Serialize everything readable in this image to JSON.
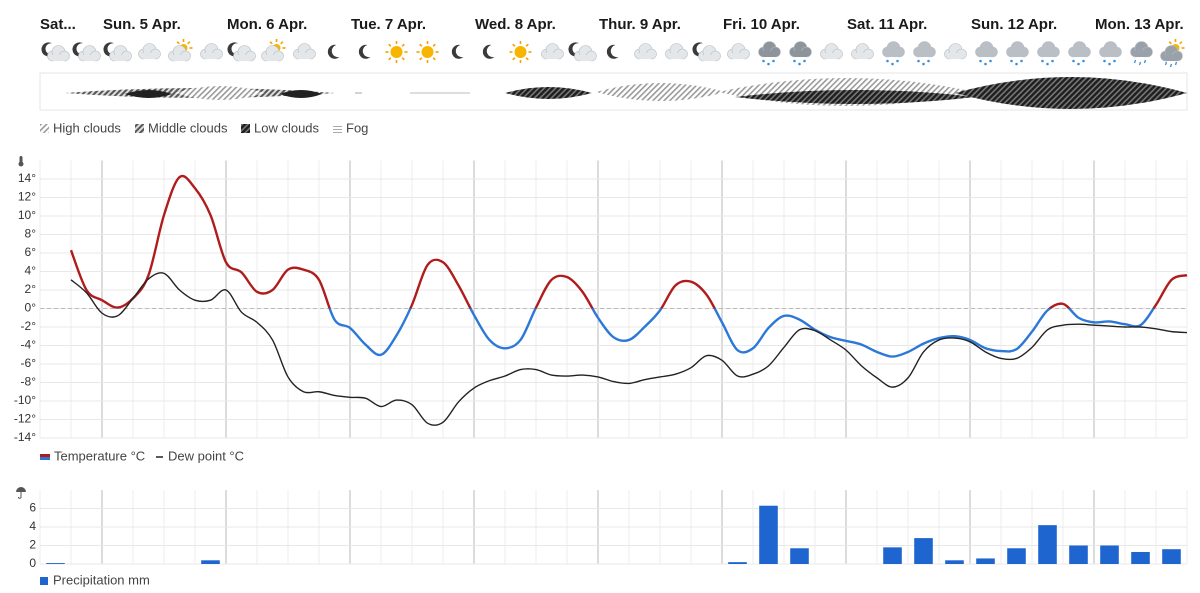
{
  "days": [
    "Sat...",
    "Sun. 5 Apr.",
    "Mon. 6 Apr.",
    "Tue. 7 Apr.",
    "Wed. 8 Apr.",
    "Thur. 9 Apr.",
    "Fri. 10 Apr.",
    "Sat. 11 Apr.",
    "Sun. 12 Apr.",
    "Mon. 13 Apr."
  ],
  "chart_data": [
    {
      "type": "clouds",
      "legend": [
        "High clouds",
        "Middle clouds",
        "Low clouds",
        "Fog"
      ]
    },
    {
      "type": "line",
      "ylim": [
        -14,
        16
      ],
      "yticks": [
        {
          "value": -14,
          "label": "-14°"
        },
        {
          "value": -12,
          "label": "-12°"
        },
        {
          "value": -10,
          "label": "-10°"
        },
        {
          "value": -8,
          "label": "-8°"
        },
        {
          "value": -6,
          "label": "-6°"
        },
        {
          "value": -4,
          "label": "-4°"
        },
        {
          "value": -2,
          "label": "-2°"
        },
        {
          "value": 0,
          "label": "0°"
        },
        {
          "value": 2,
          "label": "2°"
        },
        {
          "value": 4,
          "label": "4°"
        },
        {
          "value": 6,
          "label": "6°"
        },
        {
          "value": 8,
          "label": "8°"
        },
        {
          "value": 10,
          "label": "10°"
        },
        {
          "value": 12,
          "label": "12°"
        },
        {
          "value": 14,
          "label": "14°"
        }
      ],
      "grid": true,
      "zero_line": true,
      "series": [
        {
          "name": "Temperature °C",
          "color": "#b01c1c",
          "negative_color": "#2b78d8",
          "values": [
            null,
            null,
            6.3,
            2.0,
            0.9,
            0.1,
            1.1,
            3.6,
            10.1,
            14.2,
            13.0,
            10.1,
            5.0,
            3.9,
            1.8,
            2.0,
            4.2,
            4.2,
            3.1,
            -1.2,
            -2.1,
            -3.9,
            -5.0,
            -2.9,
            0.4,
            4.7,
            5.0,
            2.5,
            -0.7,
            -3.4,
            -4.3,
            -3.4,
            0.1,
            3.1,
            3.4,
            1.8,
            -1.0,
            -3.1,
            -3.4,
            -2.0,
            -0.2,
            2.5,
            2.9,
            1.5,
            -1.5,
            -4.5,
            -4.3,
            -2.1,
            -0.8,
            -1.2,
            -2.3,
            -3.1,
            -3.5,
            -3.9,
            -4.7,
            -5.2,
            -4.7,
            -3.8,
            -3.2,
            -3.0,
            -3.4,
            -4.3,
            -4.6,
            -4.4,
            -2.5,
            -0.2,
            0.5,
            -1.0,
            -1.5,
            -1.4,
            -1.7,
            -1.8,
            0.4,
            3.1,
            3.6
          ]
        },
        {
          "name": "Dew point °C",
          "color": "#222222",
          "values": [
            null,
            null,
            3.1,
            1.7,
            -0.5,
            -0.8,
            1.1,
            3.2,
            3.8,
            2.0,
            0.9,
            0.9,
            2.0,
            -0.4,
            -1.5,
            -3.4,
            -7.4,
            -9.0,
            -9.0,
            -9.4,
            -9.6,
            -9.7,
            -10.6,
            -9.9,
            -10.4,
            -12.4,
            -12.3,
            -10.1,
            -8.6,
            -7.8,
            -7.3,
            -6.6,
            -6.6,
            -7.2,
            -7.3,
            -7.2,
            -7.4,
            -7.9,
            -8.1,
            -7.7,
            -7.4,
            -7.1,
            -6.4,
            -5.1,
            -5.6,
            -7.3,
            -7.1,
            -6.2,
            -4.2,
            -2.3,
            -2.4,
            -3.4,
            -4.5,
            -6.2,
            -7.5,
            -8.5,
            -7.5,
            -4.7,
            -3.4,
            -3.2,
            -3.6,
            -4.7,
            -5.4,
            -5.4,
            -4.2,
            -2.3,
            -1.8,
            -1.7,
            -1.8,
            -1.9,
            -2.0,
            -2.0,
            -2.2,
            -2.5,
            -2.6
          ]
        }
      ]
    },
    {
      "type": "bar",
      "ylim": [
        0,
        8
      ],
      "yticks": [
        0,
        2,
        4,
        6
      ],
      "grid": true,
      "series": [
        {
          "name": "Precipitation mm",
          "color": "#1f65cf",
          "values": [
            0.1,
            0,
            0,
            0,
            0,
            0.4,
            0,
            0,
            0,
            0,
            0,
            0,
            0,
            0,
            0,
            0,
            0,
            0,
            0,
            0,
            0,
            0,
            0.2,
            6.3,
            1.7,
            0,
            0,
            1.8,
            2.8,
            0.4,
            0.6,
            1.7,
            4.2,
            2.0,
            2.0,
            1.3,
            1.6
          ]
        }
      ]
    }
  ]
}
